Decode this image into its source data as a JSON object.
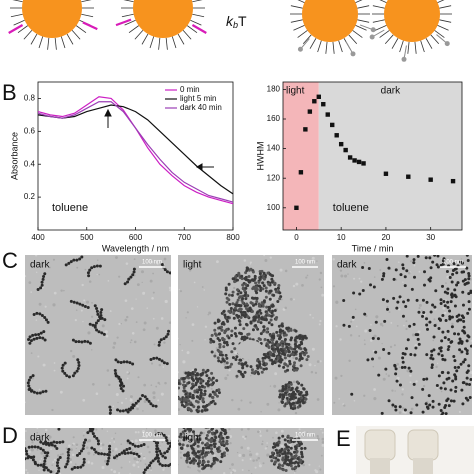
{
  "schematic": {
    "symbol": "k",
    "subscript": "b",
    "suffix": "T"
  },
  "panel_labels": [
    "B",
    "C",
    "D",
    "E"
  ],
  "chart_data": [
    {
      "type": "line",
      "xlabel": "Wavelength / nm",
      "ylabel": "Absorbance",
      "annotation": "toluene",
      "xlim": [
        400,
        800
      ],
      "xticks": [
        400,
        500,
        600,
        700,
        800
      ],
      "ylim": [
        0,
        0.9
      ],
      "yticks": [
        0.2,
        0.4,
        0.6,
        0.8
      ],
      "legend": "upper right",
      "x": [
        400,
        425,
        450,
        475,
        500,
        525,
        550,
        575,
        600,
        625,
        650,
        675,
        700,
        725,
        750,
        775,
        800
      ],
      "series": [
        {
          "name": "0 min",
          "color": "#cc1fc4",
          "values": [
            0.72,
            0.7,
            0.69,
            0.71,
            0.76,
            0.81,
            0.8,
            0.73,
            0.62,
            0.5,
            0.4,
            0.33,
            0.27,
            0.23,
            0.2,
            0.18,
            0.16
          ]
        },
        {
          "name": "light 5 min",
          "color": "#111111",
          "values": [
            0.7,
            0.69,
            0.68,
            0.69,
            0.72,
            0.74,
            0.76,
            0.75,
            0.72,
            0.67,
            0.6,
            0.53,
            0.46,
            0.39,
            0.33,
            0.27,
            0.22
          ]
        },
        {
          "name": "dark 40 min",
          "color": "#9b3fb5",
          "values": [
            0.71,
            0.69,
            0.68,
            0.7,
            0.74,
            0.78,
            0.78,
            0.72,
            0.62,
            0.52,
            0.43,
            0.35,
            0.29,
            0.25,
            0.21,
            0.19,
            0.17
          ]
        }
      ]
    },
    {
      "type": "scatter",
      "xlabel": "Time / min",
      "ylabel": "HWHM",
      "annotation": "toluene",
      "xlim": [
        -3,
        37
      ],
      "xticks": [
        0,
        10,
        20,
        30
      ],
      "ylim": [
        85,
        185
      ],
      "yticks": [
        100,
        120,
        140,
        160,
        180
      ],
      "regions": [
        {
          "label": "light",
          "range": [
            -3,
            5
          ],
          "color": "#f4b6b9"
        },
        {
          "label": "dark",
          "range": [
            5,
            37
          ],
          "color": "#d9d9d9"
        }
      ],
      "color": "#111111",
      "x": [
        0,
        1,
        2,
        3,
        4,
        5,
        6,
        7,
        8,
        9,
        10,
        11,
        12,
        13,
        14,
        15,
        20,
        25,
        30,
        35
      ],
      "values": [
        100,
        124,
        153,
        165,
        172,
        175,
        170,
        163,
        156,
        149,
        143,
        139,
        134,
        132,
        131,
        130,
        123,
        121,
        119,
        118
      ]
    }
  ],
  "tem_images": [
    {
      "label": "dark",
      "scale_bar": "100 nm"
    },
    {
      "label": "light",
      "scale_bar": "100 nm"
    },
    {
      "label": "dark",
      "scale_bar": "100 nm"
    },
    {
      "label": "dark",
      "scale_bar": "100 nm"
    },
    {
      "label": "light",
      "scale_bar": "100 nm"
    }
  ]
}
